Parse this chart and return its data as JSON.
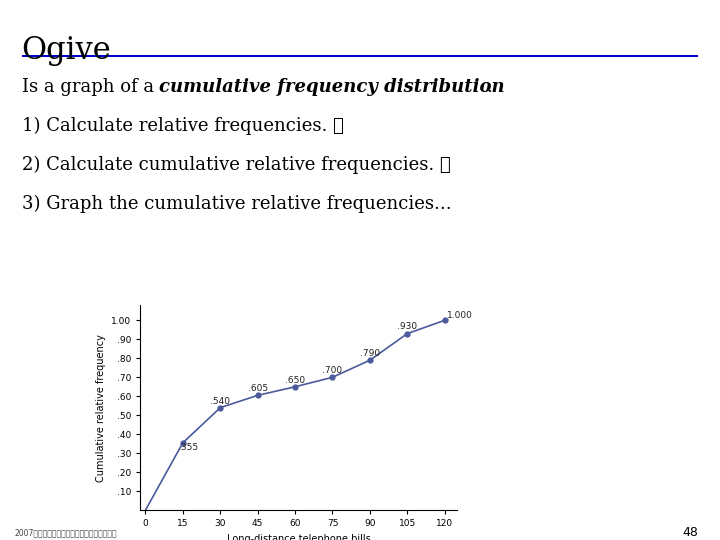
{
  "title": "Ogive",
  "title_fontsize": 22,
  "separator_color": "#0000cc",
  "x_data": [
    0,
    15,
    30,
    45,
    60,
    75,
    90,
    105,
    120
  ],
  "y_data": [
    0,
    0.355,
    0.54,
    0.605,
    0.65,
    0.7,
    0.79,
    0.93,
    1.0
  ],
  "point_labels": [
    "",
    ".355",
    ".540",
    ".605",
    ".650",
    ".700",
    ".790",
    ".930",
    "1.000"
  ],
  "label_offsets_x": [
    0,
    -2,
    -4,
    -4,
    -4,
    -4,
    -4,
    -4,
    1
  ],
  "label_offsets_y": [
    0,
    -0.04,
    0.02,
    0.025,
    0.02,
    0.025,
    0.02,
    0.025,
    0.01
  ],
  "xlabel": "Long-distance telephone bills",
  "ylabel": "Cumulative relative frequency",
  "yticks": [
    0.1,
    0.2,
    0.3,
    0.4,
    0.5,
    0.6,
    0.7,
    0.8,
    0.9,
    1.0
  ],
  "ytick_labels": [
    ".10",
    ".20",
    ".30",
    ".40",
    ".50",
    ".60",
    ".70",
    ".80",
    ".90",
    "1.00"
  ],
  "xticks": [
    0,
    15,
    30,
    45,
    60,
    75,
    90,
    105,
    120
  ],
  "line_color": "#4a5a9a",
  "marker_color": "#4a5a9a",
  "bg_color": "#ffffff",
  "footer_text": "2007年秋季全國高中數學聯賧（一）課程利用",
  "page_number": "48",
  "label_fontsize": 6.5,
  "axis_fontsize": 6.5,
  "text_fontsize": 13
}
